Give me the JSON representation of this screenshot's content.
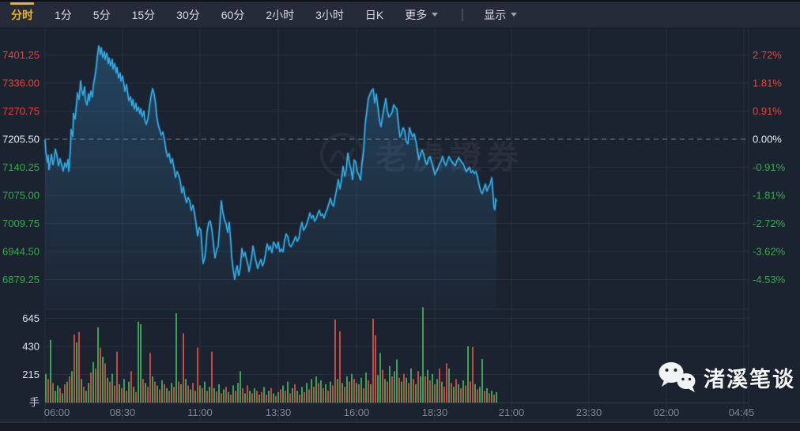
{
  "toolbar": {
    "tabs": [
      {
        "label": "分时",
        "active": true
      },
      {
        "label": "1分"
      },
      {
        "label": "5分"
      },
      {
        "label": "15分"
      },
      {
        "label": "30分"
      },
      {
        "label": "60分"
      },
      {
        "label": "2小时"
      },
      {
        "label": "3小时"
      },
      {
        "label": "日K"
      },
      {
        "label": "更多",
        "dropdown": true
      }
    ],
    "display_menu": {
      "label": "显示",
      "dropdown": true
    }
  },
  "watermarks": {
    "center_logo_text": "老虎證券",
    "corner_text": "渚溪笔谈",
    "corner_icon": "wechat-icon"
  },
  "chart_data": {
    "type": "line",
    "subtype": "intraday-timeshare-with-volume",
    "prev_close": 7205.5,
    "grid_price_step": 65.25,
    "price_axis_left": [
      "7401.25",
      "7336.00",
      "7270.75",
      "7205.50",
      "7140.25",
      "7075.00",
      "7009.75",
      "6944.50",
      "6879.25"
    ],
    "pct_axis_right": [
      "2.72%",
      "1.81%",
      "0.91%",
      "0.00%",
      "-0.91%",
      "-1.81%",
      "-2.72%",
      "-3.62%",
      "-4.53%"
    ],
    "volume_axis": {
      "ticks": [
        645,
        430,
        215
      ],
      "unit": "手"
    },
    "x_ticks": [
      "06:00",
      "08:30",
      "11:00",
      "13:30",
      "16:00",
      "18:30",
      "21:00",
      "23:30",
      "02:00",
      "04:45"
    ],
    "session_high": 7422,
    "session_low": 6880,
    "last_price": 7061,
    "price_points": [
      [
        57,
        7205
      ],
      [
        58,
        7175
      ],
      [
        60,
        7152
      ],
      [
        61,
        7168
      ],
      [
        62,
        7135
      ],
      [
        64,
        7158
      ],
      [
        65,
        7170
      ],
      [
        67,
        7146
      ],
      [
        68,
        7155
      ],
      [
        70,
        7182
      ],
      [
        72,
        7168
      ],
      [
        74,
        7144
      ],
      [
        76,
        7160
      ],
      [
        78,
        7146
      ],
      [
        80,
        7132
      ],
      [
        82,
        7150
      ],
      [
        84,
        7140
      ],
      [
        86,
        7158
      ],
      [
        87,
        7131
      ],
      [
        89,
        7180
      ],
      [
        90,
        7228
      ],
      [
        92,
        7212
      ],
      [
        93,
        7265
      ],
      [
        95,
        7252
      ],
      [
        97,
        7290
      ],
      [
        98,
        7313
      ],
      [
        100,
        7298
      ],
      [
        102,
        7341
      ],
      [
        103,
        7323
      ],
      [
        105,
        7308
      ],
      [
        107,
        7327
      ],
      [
        108,
        7298
      ],
      [
        110,
        7285
      ],
      [
        112,
        7311
      ],
      [
        113,
        7295
      ],
      [
        115,
        7317
      ],
      [
        117,
        7304
      ],
      [
        118,
        7330
      ],
      [
        120,
        7350
      ],
      [
        122,
        7376
      ],
      [
        123,
        7396
      ],
      [
        125,
        7422
      ],
      [
        127,
        7403
      ],
      [
        128,
        7418
      ],
      [
        130,
        7396
      ],
      [
        132,
        7409
      ],
      [
        133,
        7391
      ],
      [
        135,
        7405
      ],
      [
        137,
        7381
      ],
      [
        138,
        7394
      ],
      [
        140,
        7376
      ],
      [
        142,
        7391
      ],
      [
        143,
        7369
      ],
      [
        145,
        7381
      ],
      [
        147,
        7360
      ],
      [
        148,
        7372
      ],
      [
        150,
        7348
      ],
      [
        152,
        7359
      ],
      [
        153,
        7341
      ],
      [
        155,
        7352
      ],
      [
        157,
        7330
      ],
      [
        158,
        7317
      ],
      [
        160,
        7332
      ],
      [
        162,
        7308
      ],
      [
        163,
        7295
      ],
      [
        165,
        7304
      ],
      [
        167,
        7284
      ],
      [
        168,
        7298
      ],
      [
        170,
        7276
      ],
      [
        172,
        7289
      ],
      [
        173,
        7271
      ],
      [
        175,
        7280
      ],
      [
        177,
        7265
      ],
      [
        178,
        7276
      ],
      [
        180,
        7258
      ],
      [
        182,
        7271
      ],
      [
        183,
        7252
      ],
      [
        185,
        7240
      ],
      [
        187,
        7252
      ],
      [
        189,
        7280
      ],
      [
        191,
        7305
      ],
      [
        193,
        7323
      ],
      [
        195,
        7310
      ],
      [
        197,
        7285
      ],
      [
        198,
        7262
      ],
      [
        200,
        7240
      ],
      [
        202,
        7228
      ],
      [
        204,
        7215
      ],
      [
        206,
        7222
      ],
      [
        208,
        7205
      ],
      [
        210,
        7180
      ],
      [
        212,
        7165
      ],
      [
        214,
        7172
      ],
      [
        216,
        7150
      ],
      [
        218,
        7160
      ],
      [
        220,
        7140
      ],
      [
        222,
        7117
      ],
      [
        224,
        7130
      ],
      [
        226,
        7122
      ],
      [
        228,
        7108
      ],
      [
        230,
        7081
      ],
      [
        232,
        7095
      ],
      [
        234,
        7072
      ],
      [
        236,
        7058
      ],
      [
        238,
        7070
      ],
      [
        240,
        7062
      ],
      [
        242,
        7040
      ],
      [
        244,
        7052
      ],
      [
        246,
        7034
      ],
      [
        248,
        7010
      ],
      [
        250,
        6981
      ],
      [
        252,
        7000
      ],
      [
        254,
        6994
      ],
      [
        256,
        6940
      ],
      [
        257,
        6917
      ],
      [
        259,
        6930
      ],
      [
        260,
        6944
      ],
      [
        262,
        6990
      ],
      [
        264,
        7012
      ],
      [
        266,
        7015
      ],
      [
        268,
        6995
      ],
      [
        270,
        6962
      ],
      [
        272,
        6930
      ],
      [
        274,
        6948
      ],
      [
        276,
        6957
      ],
      [
        278,
        7006
      ],
      [
        280,
        7062
      ],
      [
        282,
        7034
      ],
      [
        284,
        7018
      ],
      [
        286,
        7009
      ],
      [
        288,
        6989
      ],
      [
        290,
        7012
      ],
      [
        292,
        6966
      ],
      [
        293,
        6933
      ],
      [
        295,
        6902
      ],
      [
        297,
        6880
      ],
      [
        298,
        6896
      ],
      [
        300,
        6911
      ],
      [
        302,
        6889
      ],
      [
        304,
        6907
      ],
      [
        306,
        6951
      ],
      [
        308,
        6933
      ],
      [
        310,
        6942
      ],
      [
        312,
        6925
      ],
      [
        314,
        6911
      ],
      [
        315,
        6898
      ],
      [
        317,
        6917
      ],
      [
        319,
        6940
      ],
      [
        320,
        6957
      ],
      [
        322,
        6938
      ],
      [
        324,
        6920
      ],
      [
        326,
        6905
      ],
      [
        328,
        6917
      ],
      [
        330,
        6926
      ],
      [
        332,
        6911
      ],
      [
        334,
        6920
      ],
      [
        336,
        6940
      ],
      [
        338,
        6962
      ],
      [
        340,
        6948
      ],
      [
        342,
        6957
      ],
      [
        344,
        6942
      ],
      [
        346,
        6966
      ],
      [
        348,
        6960
      ],
      [
        350,
        6952
      ],
      [
        352,
        6966
      ],
      [
        354,
        6944
      ],
      [
        356,
        6950
      ],
      [
        358,
        6944
      ],
      [
        360,
        6970
      ],
      [
        362,
        6985
      ],
      [
        364,
        6979
      ],
      [
        366,
        6960
      ],
      [
        368,
        6956
      ],
      [
        370,
        6962
      ],
      [
        372,
        6970
      ],
      [
        374,
        6979
      ],
      [
        376,
        6968
      ],
      [
        378,
        6975
      ],
      [
        380,
        6997
      ],
      [
        382,
        7012
      ],
      [
        384,
        6994
      ],
      [
        386,
        7000
      ],
      [
        388,
        7008
      ],
      [
        390,
        7020
      ],
      [
        392,
        7034
      ],
      [
        394,
        7022
      ],
      [
        396,
        7028
      ],
      [
        398,
        7015
      ],
      [
        400,
        7021
      ],
      [
        402,
        7032
      ],
      [
        404,
        7040
      ],
      [
        406,
        7028
      ],
      [
        408,
        7031
      ],
      [
        410,
        7022
      ],
      [
        412,
        7035
      ],
      [
        414,
        7043
      ],
      [
        416,
        7055
      ],
      [
        418,
        7068
      ],
      [
        420,
        7055
      ],
      [
        422,
        7050
      ],
      [
        424,
        7072
      ],
      [
        426,
        7090
      ],
      [
        428,
        7111
      ],
      [
        430,
        7090
      ],
      [
        432,
        7111
      ],
      [
        434,
        7142
      ],
      [
        436,
        7120
      ],
      [
        438,
        7133
      ],
      [
        440,
        7173
      ],
      [
        442,
        7150
      ],
      [
        444,
        7136
      ],
      [
        446,
        7112
      ],
      [
        448,
        7157
      ],
      [
        450,
        7152
      ],
      [
        452,
        7130
      ],
      [
        454,
        7123
      ],
      [
        456,
        7111
      ],
      [
        458,
        7150
      ],
      [
        460,
        7180
      ],
      [
        462,
        7240
      ],
      [
        464,
        7270
      ],
      [
        466,
        7300
      ],
      [
        468,
        7310
      ],
      [
        470,
        7318
      ],
      [
        472,
        7322
      ],
      [
        474,
        7290
      ],
      [
        476,
        7310
      ],
      [
        478,
        7281
      ],
      [
        480,
        7250
      ],
      [
        482,
        7235
      ],
      [
        484,
        7260
      ],
      [
        486,
        7280
      ],
      [
        488,
        7300
      ],
      [
        490,
        7270
      ],
      [
        492,
        7257
      ],
      [
        494,
        7262
      ],
      [
        496,
        7268
      ],
      [
        498,
        7285
      ],
      [
        500,
        7280
      ],
      [
        502,
        7276
      ],
      [
        504,
        7240
      ],
      [
        506,
        7211
      ],
      [
        508,
        7220
      ],
      [
        510,
        7232
      ],
      [
        512,
        7225
      ],
      [
        514,
        7200
      ],
      [
        516,
        7195
      ],
      [
        518,
        7232
      ],
      [
        520,
        7220
      ],
      [
        522,
        7211
      ],
      [
        524,
        7218
      ],
      [
        526,
        7202
      ],
      [
        528,
        7180
      ],
      [
        530,
        7158
      ],
      [
        532,
        7172
      ],
      [
        534,
        7180
      ],
      [
        536,
        7171
      ],
      [
        538,
        7155
      ],
      [
        540,
        7147
      ],
      [
        542,
        7160
      ],
      [
        544,
        7165
      ],
      [
        546,
        7152
      ],
      [
        548,
        7140
      ],
      [
        550,
        7123
      ],
      [
        552,
        7131
      ],
      [
        554,
        7138
      ],
      [
        556,
        7148
      ],
      [
        558,
        7155
      ],
      [
        560,
        7165
      ],
      [
        562,
        7152
      ],
      [
        564,
        7144
      ],
      [
        566,
        7155
      ],
      [
        568,
        7165
      ],
      [
        570,
        7158
      ],
      [
        572,
        7152
      ],
      [
        574,
        7148
      ],
      [
        576,
        7144
      ],
      [
        578,
        7155
      ],
      [
        580,
        7162
      ],
      [
        582,
        7158
      ],
      [
        584,
        7152
      ],
      [
        586,
        7148
      ],
      [
        588,
        7138
      ],
      [
        590,
        7130
      ],
      [
        592,
        7136
      ],
      [
        594,
        7140
      ],
      [
        596,
        7128
      ],
      [
        598,
        7132
      ],
      [
        600,
        7126
      ],
      [
        602,
        7130
      ],
      [
        604,
        7118
      ],
      [
        606,
        7100
      ],
      [
        608,
        7085
      ],
      [
        610,
        7079
      ],
      [
        612,
        7090
      ],
      [
        614,
        7101
      ],
      [
        616,
        7085
      ],
      [
        618,
        7095
      ],
      [
        620,
        7100
      ],
      [
        622,
        7116
      ],
      [
        623,
        7094
      ],
      [
        624,
        7070
      ],
      [
        625,
        7046
      ],
      [
        626,
        7042
      ],
      [
        627,
        7067
      ],
      [
        628,
        7061
      ]
    ],
    "volume_signed_green_pos": [
      220,
      -180,
      480,
      -150,
      90,
      130,
      -110,
      70,
      -140,
      160,
      -200,
      240,
      -520,
      460,
      -540,
      180,
      -120,
      90,
      150,
      -230,
      310,
      -260,
      575,
      -420,
      350,
      -300,
      190,
      -160,
      220,
      -130,
      -390,
      140,
      -110,
      180,
      -90,
      160,
      -240,
      120,
      -80,
      620,
      600,
      -180,
      150,
      -120,
      -380,
      200,
      -160,
      130,
      -100,
      170,
      -140,
      110,
      -90,
      150,
      -120,
      684,
      -160,
      140,
      -530,
      180,
      -130,
      100,
      -150,
      90,
      -420,
      130,
      -110,
      160,
      -90,
      120,
      -390,
      110,
      -85,
      140,
      -70,
      100,
      -120,
      80,
      -60,
      130,
      -90,
      150,
      240,
      -110,
      70,
      -130,
      90,
      -70,
      110,
      -90,
      60,
      -80,
      120,
      -60,
      90,
      -110,
      70,
      -50,
      80,
      -100,
      130,
      -90,
      160,
      -70,
      110,
      -140,
      90,
      -60,
      120,
      -80,
      150,
      -100,
      180,
      -120,
      200,
      -150,
      170,
      -110,
      140,
      -90,
      160,
      -130,
      -636,
      180,
      -545,
      150,
      -120,
      200,
      -160,
      220,
      -180,
      150,
      -140,
      190,
      -110,
      230,
      -170,
      140,
      -642,
      -515,
      210,
      380,
      -250,
      180,
      -160,
      280,
      -200,
      240,
      330,
      -190,
      160,
      -220,
      190,
      -150,
      260,
      -180,
      140,
      -240,
      200,
      730,
      -200,
      250,
      -170,
      220,
      -140,
      180,
      -260,
      160,
      -120,
      -300,
      260,
      -150,
      120,
      -180,
      140,
      -110,
      170,
      -130,
      430,
      -160,
      -425,
      140,
      -100,
      120,
      333,
      -90,
      110,
      -70,
      90,
      -60,
      80
    ],
    "colors": {
      "up": "#e2443c",
      "down": "#35a94e",
      "neutral_label": "#e9edf2",
      "line": "#2fa7e0",
      "accent": "#f0b40b",
      "vol_red": "#c64a41",
      "vol_green": "#3ba155",
      "axis_text": "#7e8696",
      "grid": "#272f3d"
    }
  }
}
